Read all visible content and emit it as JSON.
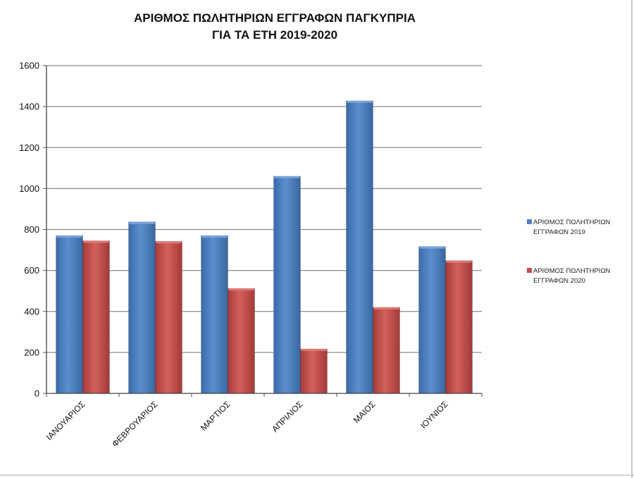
{
  "title_lines": [
    "ΑΡΙΘΜΟΣ ΠΩΛΗΤΗΡΙΩΝ ΕΓΓΡΑΦΩΝ ΠΑΓΚΥΠΡΙΑ",
    "ΓΙΑ ΤΑ ΕΤΗ 2019-2020"
  ],
  "legend": [
    {
      "line1": "ΑΡΙΘΜΟΣ ΠΩΛΗΤΗΡΙΩΝ",
      "line2": "ΕΓΓΡΑΦΩΝ 2019",
      "color": "#4f81bd"
    },
    {
      "line1": "ΑΡΙΘΜΟΣ ΠΩΛΗΤΗΡΙΩΝ",
      "line2": "ΕΓΓΡΑΦΩΝ 2020",
      "color": "#c0504d"
    }
  ],
  "chart_data": {
    "type": "bar",
    "title": "ΑΡΙΘΜΟΣ ΠΩΛΗΤΗΡΙΩΝ ΕΓΓΡΑΦΩΝ ΠΑΓΚΥΠΡΙΑ ΓΙΑ ΤΑ ΕΤΗ 2019-2020",
    "categories": [
      "ΙΑΝΟΥΑΡΙΟΣ",
      "ΦΕΒΡΟΥΑΡΙΟΣ",
      "ΜΑΡΤΙΟΣ",
      "ΑΠΡΙΛΙΟΣ",
      "ΜΑΙΟΣ",
      "ΙΟΥΝΙΟΣ"
    ],
    "series": [
      {
        "name": "ΑΡΙΘΜΟΣ ΠΩΛΗΤΗΡΙΩΝ ΕΓΓΡΑΦΩΝ 2019",
        "color": "#4f81bd",
        "values": [
          770,
          837,
          770,
          1060,
          1428,
          717
        ]
      },
      {
        "name": "ΑΡΙΘΜΟΣ ΠΩΛΗΤΗΡΙΩΝ ΕΓΓΡΑΦΩΝ 2020",
        "color": "#c0504d",
        "values": [
          745,
          742,
          512,
          217,
          420,
          648
        ]
      }
    ],
    "yticks": [
      "0",
      "200",
      "400",
      "600",
      "800",
      "1000",
      "1200",
      "1400",
      "1600"
    ],
    "ylim": [
      0,
      1600
    ],
    "grid": true,
    "legend_position": "right"
  }
}
